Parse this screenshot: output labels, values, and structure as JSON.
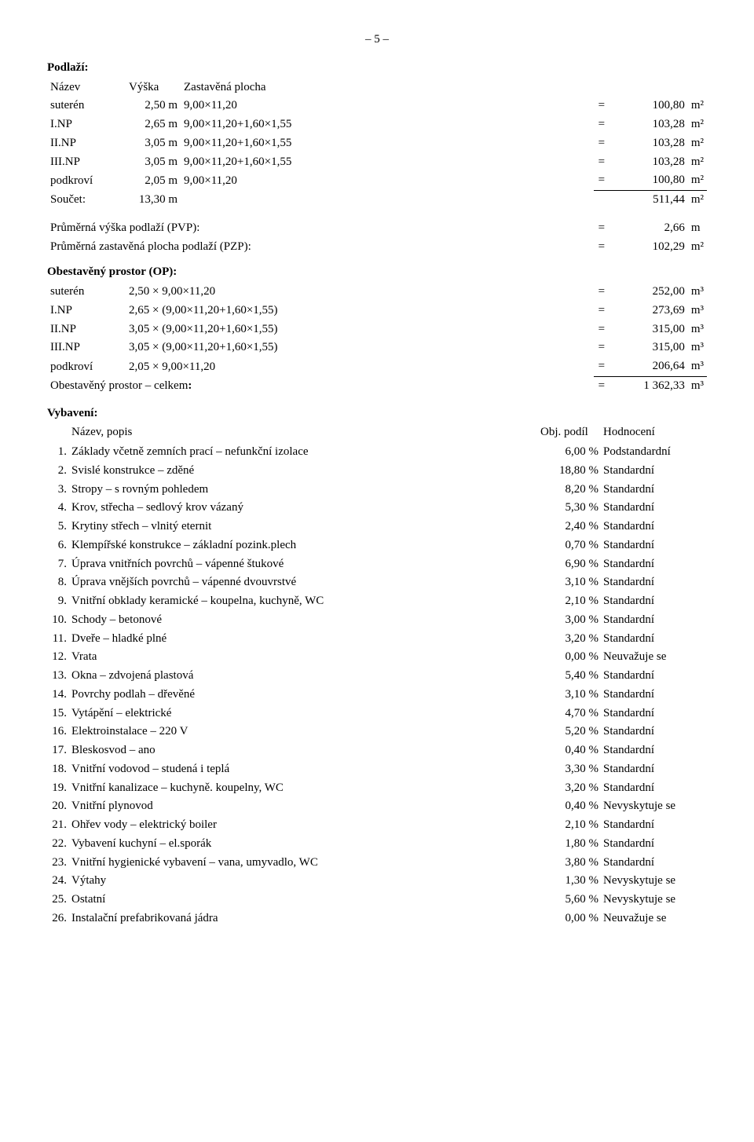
{
  "page_number": "– 5 –",
  "podlazi": {
    "heading": "Podlaží:",
    "cols": [
      "Název",
      "Výška",
      "Zastavěná plocha"
    ],
    "rows": [
      {
        "name": "suterén",
        "h": "2,50 m",
        "expr": "9,00×11,20",
        "eq": "=",
        "val": "100,80",
        "unit": "m²"
      },
      {
        "name": "I.NP",
        "h": "2,65 m",
        "expr": "9,00×11,20+1,60×1,55",
        "eq": "=",
        "val": "103,28",
        "unit": "m²"
      },
      {
        "name": "II.NP",
        "h": "3,05 m",
        "expr": "9,00×11,20+1,60×1,55",
        "eq": "=",
        "val": "103,28",
        "unit": "m²"
      },
      {
        "name": "III.NP",
        "h": "3,05 m",
        "expr": "9,00×11,20+1,60×1,55",
        "eq": "=",
        "val": "103,28",
        "unit": "m²"
      },
      {
        "name": "podkroví",
        "h": "2,05 m",
        "expr": "9,00×11,20",
        "eq": "=",
        "val": "100,80",
        "unit": "m²"
      }
    ],
    "sum": {
      "name": "Součet:",
      "h": "13,30 m",
      "expr": "",
      "eq": "",
      "val": "511,44",
      "unit": "m²"
    }
  },
  "pvp": {
    "r1": {
      "label": "Průměrná výška podlaží (PVP):",
      "eq": "=",
      "val": "2,66",
      "unit": "m"
    },
    "r2": {
      "label": "Průměrná zastavěná plocha podlaží (PZP):",
      "eq": "=",
      "val": "102,29",
      "unit": "m²"
    }
  },
  "op": {
    "heading": "Obestavěný prostor (OP):",
    "rows": [
      {
        "name": "suterén",
        "expr": "2,50 × 9,00×11,20",
        "eq": "=",
        "val": "252,00",
        "unit": "m³"
      },
      {
        "name": "I.NP",
        "expr": "2,65 × (9,00×11,20+1,60×1,55)",
        "eq": "=",
        "val": "273,69",
        "unit": "m³"
      },
      {
        "name": "II.NP",
        "expr": "3,05 × (9,00×11,20+1,60×1,55)",
        "eq": "=",
        "val": "315,00",
        "unit": "m³"
      },
      {
        "name": "III.NP",
        "expr": "3,05 × (9,00×11,20+1,60×1,55)",
        "eq": "=",
        "val": "315,00",
        "unit": "m³"
      },
      {
        "name": "podkroví",
        "expr": "2,05 × 9,00×11,20",
        "eq": "=",
        "val": "206,64",
        "unit": "m³"
      }
    ],
    "total": {
      "name": "Obestavěný prostor – celkem:",
      "eq": "=",
      "val": "1 362,33",
      "unit": "m³"
    }
  },
  "vybaveni": {
    "heading": "Vybavení:",
    "cols": {
      "name": "Název, popis",
      "podil": "Obj. podíl",
      "hod": "Hodnocení"
    },
    "rows": [
      {
        "n": "1.",
        "name": "Základy včetně zemních prací – nefunkční izolace",
        "pct": "6,00 %",
        "eval": "Podstandardní"
      },
      {
        "n": "2.",
        "name": "Svislé konstrukce – zděné",
        "pct": "18,80 %",
        "eval": "Standardní"
      },
      {
        "n": "3.",
        "name": "Stropy – s rovným pohledem",
        "pct": "8,20 %",
        "eval": "Standardní"
      },
      {
        "n": "4.",
        "name": "Krov, střecha – sedlový krov vázaný",
        "pct": "5,30 %",
        "eval": "Standardní"
      },
      {
        "n": "5.",
        "name": "Krytiny střech – vlnitý eternit",
        "pct": "2,40 %",
        "eval": "Standardní"
      },
      {
        "n": "6.",
        "name": "Klempířské konstrukce – základní pozink.plech",
        "pct": "0,70 %",
        "eval": "Standardní"
      },
      {
        "n": "7.",
        "name": "Úprava vnitřních povrchů – vápenné štukové",
        "pct": "6,90 %",
        "eval": "Standardní"
      },
      {
        "n": "8.",
        "name": "Úprava vnějších povrchů – vápenné dvouvrstvé",
        "pct": "3,10 %",
        "eval": "Standardní"
      },
      {
        "n": "9.",
        "name": "Vnitřní obklady keramické – koupelna, kuchyně, WC",
        "pct": "2,10 %",
        "eval": "Standardní"
      },
      {
        "n": "10.",
        "name": "Schody – betonové",
        "pct": "3,00 %",
        "eval": "Standardní"
      },
      {
        "n": "11.",
        "name": "Dveře – hladké plné",
        "pct": "3,20 %",
        "eval": "Standardní"
      },
      {
        "n": "12.",
        "name": "Vrata",
        "pct": "0,00 %",
        "eval": "Neuvažuje se"
      },
      {
        "n": "13.",
        "name": "Okna – zdvojená plastová",
        "pct": "5,40 %",
        "eval": "Standardní"
      },
      {
        "n": "14.",
        "name": "Povrchy podlah – dřevěné",
        "pct": "3,10 %",
        "eval": "Standardní"
      },
      {
        "n": "15.",
        "name": "Vytápění – elektrické",
        "pct": "4,70 %",
        "eval": "Standardní"
      },
      {
        "n": "16.",
        "name": "Elektroinstalace – 220  V",
        "pct": "5,20 %",
        "eval": "Standardní"
      },
      {
        "n": "17.",
        "name": "Bleskosvod – ano",
        "pct": "0,40 %",
        "eval": "Standardní"
      },
      {
        "n": "18.",
        "name": "Vnitřní vodovod – studená i teplá",
        "pct": "3,30 %",
        "eval": "Standardní"
      },
      {
        "n": "19.",
        "name": "Vnitřní kanalizace – kuchyně. koupelny, WC",
        "pct": "3,20 %",
        "eval": "Standardní"
      },
      {
        "n": "20.",
        "name": "Vnitřní plynovod",
        "pct": "0,40 %",
        "eval": "Nevyskytuje se"
      },
      {
        "n": "21.",
        "name": "Ohřev vody – elektrický boiler",
        "pct": "2,10 %",
        "eval": "Standardní"
      },
      {
        "n": "22.",
        "name": "Vybavení kuchyní – el.sporák",
        "pct": "1,80 %",
        "eval": "Standardní"
      },
      {
        "n": "23.",
        "name": "Vnitřní hygienické vybavení – vana, umyvadlo, WC",
        "pct": "3,80 %",
        "eval": "Standardní"
      },
      {
        "n": "24.",
        "name": "Výtahy",
        "pct": "1,30 %",
        "eval": "Nevyskytuje se"
      },
      {
        "n": "25.",
        "name": "Ostatní",
        "pct": "5,60 %",
        "eval": "Nevyskytuje se"
      },
      {
        "n": "26.",
        "name": "Instalační prefabrikovaná jádra",
        "pct": "0,00 %",
        "eval": "Neuvažuje se"
      }
    ]
  }
}
